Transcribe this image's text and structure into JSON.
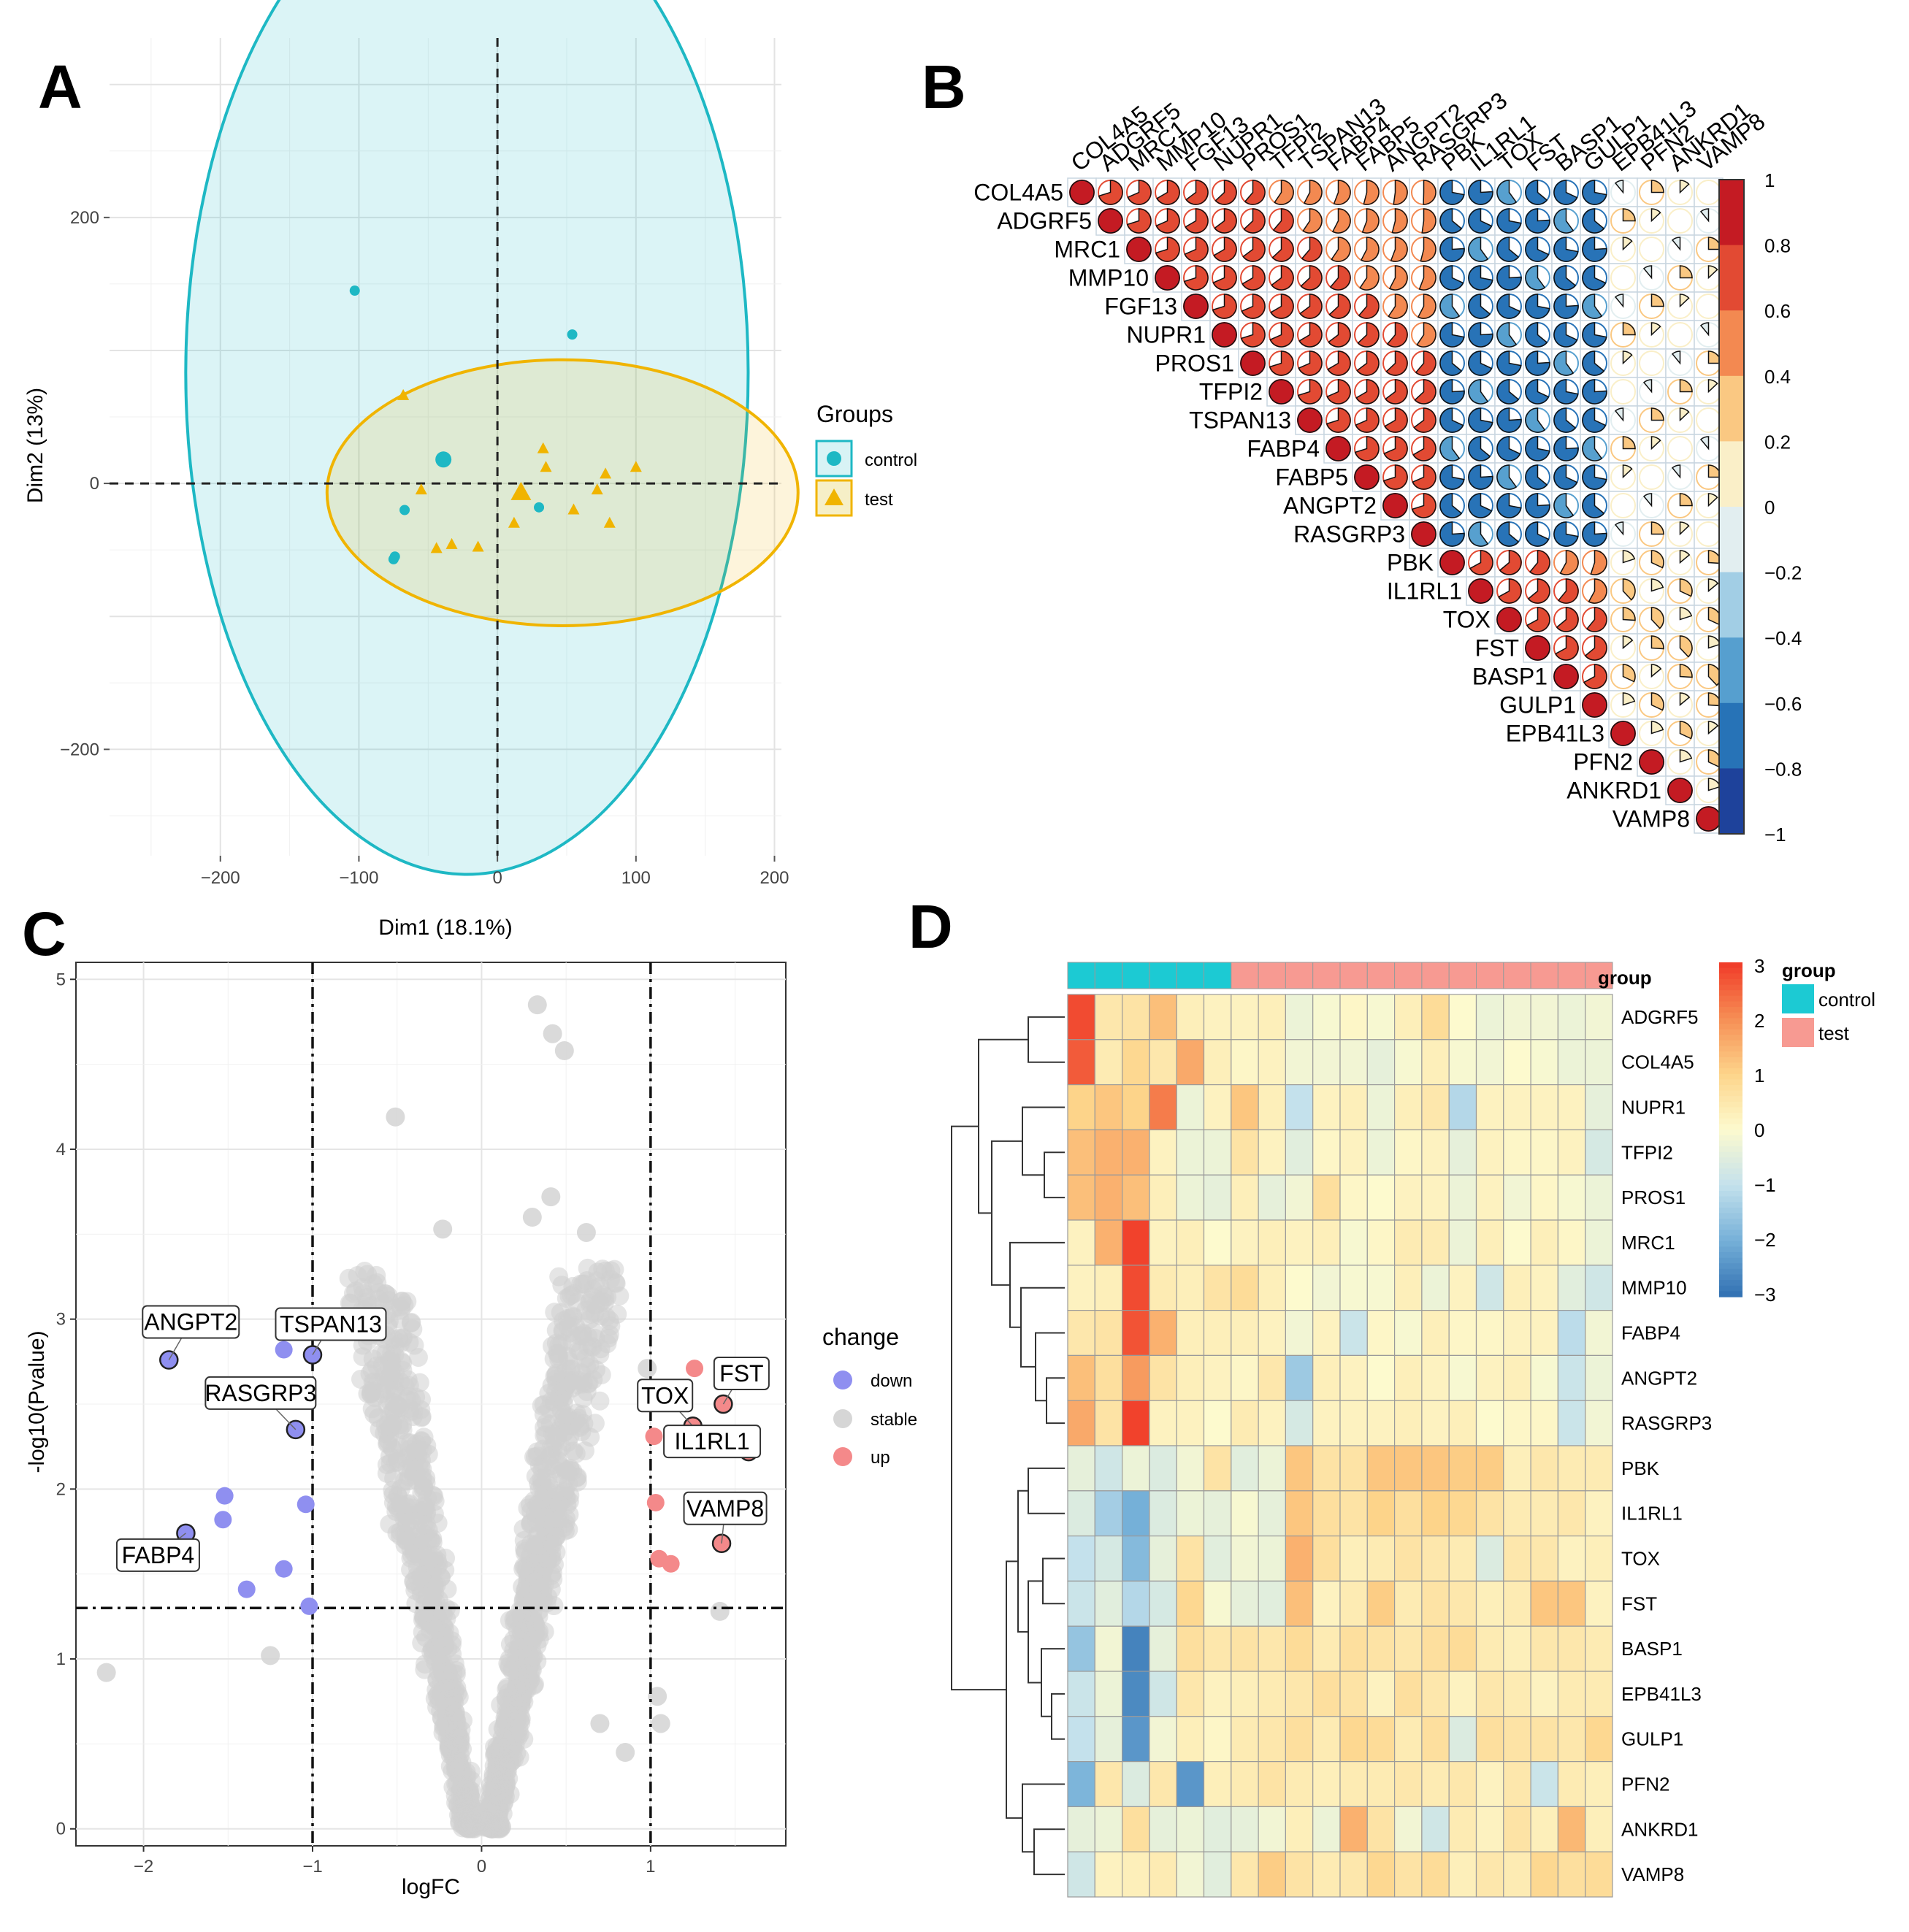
{
  "panels": {
    "a": "A",
    "b": "B",
    "c": "C",
    "d": "D"
  },
  "chart_data": [
    {
      "panel": "A",
      "type": "scatter",
      "title": "",
      "xlabel": "Dim1 (18.1%)",
      "ylabel": "Dim2 (13%)",
      "xlim": [
        -280,
        205
      ],
      "ylim": [
        -280,
        335
      ],
      "xticks": [
        -200,
        -100,
        0,
        100,
        200
      ],
      "yticks": [
        -200,
        0,
        200
      ],
      "grid": true,
      "legend_title": "Groups",
      "legend_position": "right",
      "colors": {
        "control": "#1eb8c4",
        "test": "#f0b400"
      },
      "series": [
        {
          "name": "control",
          "marker": "circle",
          "points": [
            [
              -103,
              145
            ],
            [
              54,
              112
            ],
            [
              -40,
              18
            ],
            [
              -67,
              -20
            ],
            [
              30,
              -18
            ],
            [
              -74,
              -55
            ],
            [
              -75,
              -57
            ]
          ],
          "centroid": [
            -39,
            18
          ],
          "ellipse": {
            "cx": -22,
            "cy": 83,
            "rx": 203,
            "ry": 377
          }
        },
        {
          "name": "test",
          "marker": "triangle",
          "points": [
            [
              -68,
              66
            ],
            [
              33,
              26
            ],
            [
              35,
              12
            ],
            [
              -55,
              -5
            ],
            [
              -33,
              -46
            ],
            [
              -44,
              -49
            ],
            [
              -14,
              -48
            ],
            [
              12,
              -30
            ],
            [
              55,
              -20
            ],
            [
              72,
              -5
            ],
            [
              78,
              7
            ],
            [
              100,
              12
            ],
            [
              81,
              -30
            ]
          ],
          "centroid": [
            17,
            -7
          ],
          "ellipse": {
            "cx": 47,
            "cy": -7,
            "rx": 170,
            "ry": 100
          }
        }
      ]
    },
    {
      "panel": "B",
      "type": "heatmap",
      "subtype": "correlation-pie-upper",
      "title": "",
      "genes": [
        "COL4A5",
        "ADGRF5",
        "MRC1",
        "MMP10",
        "FGF13",
        "NUPR1",
        "PROS1",
        "TFPI2",
        "TSPAN13",
        "FABP4",
        "FABP5",
        "ANGPT2",
        "RASGRP3",
        "PBK",
        "IL1RL1",
        "TOX",
        "FST",
        "BASP1",
        "GULP1",
        "EPB41L3",
        "PFN2",
        "ANKRD1",
        "VAMP8"
      ],
      "colorbar_ticks": [
        "1",
        "0.8",
        "0.6",
        "0.4",
        "0.2",
        "0",
        "−0.2",
        "−0.4",
        "−0.6",
        "−0.8",
        "−1"
      ],
      "clim": [
        -1,
        1
      ]
    },
    {
      "panel": "C",
      "type": "scatter",
      "subtype": "volcano",
      "title": "",
      "xlabel": "logFC",
      "ylabel": "-log10(Pvalue)",
      "xlim": [
        -2.4,
        1.8
      ],
      "ylim": [
        -0.1,
        5.1
      ],
      "xticks": [
        -2,
        -1,
        0,
        1
      ],
      "yticks": [
        0,
        1,
        2,
        3,
        4,
        5
      ],
      "thresholds": {
        "logfc": [
          -1,
          1
        ],
        "p": 1.3
      },
      "legend_title": "change",
      "legend_position": "right",
      "legend": [
        {
          "label": "down",
          "color": "#8f8ff0"
        },
        {
          "label": "stable",
          "color": "#d6d6d6"
        },
        {
          "label": "up",
          "color": "#f4898a"
        }
      ],
      "down": [
        [
          -1.85,
          2.76
        ],
        [
          -1.17,
          2.82
        ],
        [
          -1.0,
          2.79
        ],
        [
          -1.04,
          2.57
        ],
        [
          -1.1,
          2.35
        ],
        [
          -1.04,
          1.91
        ],
        [
          -1.52,
          1.96
        ],
        [
          -1.53,
          1.82
        ],
        [
          -1.75,
          1.74
        ],
        [
          -1.17,
          1.53
        ],
        [
          -1.39,
          1.41
        ],
        [
          -1.02,
          1.31
        ]
      ],
      "up": [
        [
          1.26,
          2.71
        ],
        [
          1.43,
          2.5
        ],
        [
          1.25,
          2.37
        ],
        [
          1.02,
          2.31
        ],
        [
          1.58,
          2.22
        ],
        [
          1.03,
          1.92
        ],
        [
          1.42,
          1.68
        ],
        [
          1.05,
          1.59
        ],
        [
          1.12,
          1.56
        ]
      ],
      "stable_extremes": [
        [
          0.33,
          4.85
        ],
        [
          0.42,
          4.68
        ],
        [
          0.49,
          4.58
        ],
        [
          -0.51,
          4.19
        ],
        [
          0.41,
          3.72
        ],
        [
          0.3,
          3.6
        ],
        [
          0.62,
          3.51
        ],
        [
          -0.23,
          3.53
        ],
        [
          0.98,
          2.71
        ],
        [
          -2.22,
          0.92
        ],
        [
          -1.25,
          1.02
        ],
        [
          1.41,
          1.28
        ],
        [
          1.04,
          0.78
        ],
        [
          1.06,
          0.62
        ],
        [
          0.85,
          0.45
        ],
        [
          0.7,
          0.62
        ]
      ],
      "labeled_genes": [
        {
          "gene": "ANGPT2",
          "x": -1.85,
          "y": 2.76
        },
        {
          "gene": "TSPAN13",
          "x": -1.0,
          "y": 2.79
        },
        {
          "gene": "RASGRP3",
          "x": -1.1,
          "y": 2.35
        },
        {
          "gene": "FABP4",
          "x": -1.75,
          "y": 1.74
        },
        {
          "gene": "FST",
          "x": 1.43,
          "y": 2.5
        },
        {
          "gene": "TOX",
          "x": 1.25,
          "y": 2.37
        },
        {
          "gene": "IL1RL1",
          "x": 1.58,
          "y": 2.22
        },
        {
          "gene": "VAMP8",
          "x": 1.42,
          "y": 1.68
        }
      ]
    },
    {
      "panel": "D",
      "type": "heatmap",
      "title": "",
      "rows": [
        "ADGRF5",
        "COL4A5",
        "NUPR1",
        "TFPI2",
        "PROS1",
        "MRC1",
        "MMP10",
        "FABP4",
        "ANGPT2",
        "RASGRP3",
        "PBK",
        "IL1RL1",
        "TOX",
        "FST",
        "BASP1",
        "EPB41L3",
        "GULP1",
        "PFN2",
        "ANKRD1",
        "VAMP8"
      ],
      "n_columns": 20,
      "group_annotation_label": "group",
      "column_groups": [
        "control",
        "control",
        "control",
        "control",
        "control",
        "control",
        "test",
        "test",
        "test",
        "test",
        "test",
        "test",
        "test",
        "test",
        "test",
        "test",
        "test",
        "test",
        "test",
        "test"
      ],
      "group_colors": {
        "control": "#1ccad3",
        "test": "#f79a92"
      },
      "legend_title": "group",
      "legend": [
        {
          "label": "control",
          "color": "#1ccad3"
        },
        {
          "label": "test",
          "color": "#f79a92"
        }
      ],
      "clim": [
        -3,
        3
      ],
      "colorbar_ticks": [
        "3",
        "2",
        "1",
        "0",
        "−1",
        "−2",
        "−3"
      ],
      "values": [
        [
          2.8,
          0.5,
          0.6,
          1.3,
          0.3,
          0.2,
          0.2,
          0.3,
          -0.3,
          -0.1,
          0.1,
          -0.1,
          0.3,
          0.8,
          0.0,
          -0.3,
          -0.2,
          -0.2,
          -0.3,
          -0.2
        ],
        [
          2.6,
          0.4,
          0.9,
          0.5,
          1.6,
          0.3,
          0.1,
          0.2,
          -0.2,
          -0.2,
          -0.2,
          -0.4,
          -0.1,
          0.3,
          -0.1,
          -0.2,
          0.0,
          -0.1,
          -0.3,
          -0.3
        ],
        [
          1.0,
          1.2,
          1.0,
          2.2,
          -0.3,
          0.2,
          1.2,
          0.3,
          -1.0,
          0.2,
          0.3,
          -0.3,
          0.3,
          0.5,
          -1.2,
          0.2,
          0.2,
          0.2,
          0.2,
          -0.4
        ],
        [
          1.3,
          1.5,
          1.5,
          0.2,
          -0.3,
          -0.3,
          0.6,
          0.2,
          -0.5,
          0.1,
          0.2,
          -0.3,
          0.1,
          0.2,
          -0.4,
          0.2,
          0.1,
          0.1,
          0.2,
          -0.7
        ],
        [
          1.3,
          1.5,
          1.3,
          0.3,
          -0.3,
          -0.4,
          0.3,
          -0.4,
          -0.2,
          0.7,
          0.1,
          0.0,
          0.2,
          0.2,
          -0.3,
          0.2,
          -0.2,
          0.1,
          -0.1,
          -0.3
        ],
        [
          0.2,
          1.5,
          2.9,
          0.2,
          0.3,
          0.0,
          0.2,
          0.3,
          0.2,
          0.3,
          -0.1,
          0.1,
          0.4,
          0.4,
          -0.3,
          0.3,
          0.0,
          0.3,
          0.1,
          -0.3
        ],
        [
          0.2,
          0.3,
          2.8,
          0.4,
          0.3,
          0.6,
          0.8,
          0.3,
          0.0,
          -0.2,
          -0.1,
          -0.1,
          0.3,
          -0.3,
          0.2,
          -0.8,
          0.3,
          0.2,
          -0.5,
          -0.8
        ],
        [
          0.5,
          0.6,
          2.7,
          1.5,
          0.3,
          0.3,
          0.3,
          0.2,
          -0.2,
          0.2,
          -0.9,
          0.1,
          -0.1,
          0.3,
          0.1,
          0.1,
          0.2,
          0.2,
          -1.1,
          -0.2
        ],
        [
          1.3,
          0.7,
          1.8,
          0.6,
          0.3,
          0.2,
          0.1,
          0.5,
          -1.5,
          0.3,
          0.2,
          0.0,
          0.3,
          0.2,
          -0.1,
          0.2,
          0.3,
          -0.1,
          -0.9,
          -0.3
        ],
        [
          1.6,
          0.6,
          2.9,
          0.2,
          0.2,
          0.0,
          0.4,
          0.2,
          -0.7,
          0.2,
          0.2,
          0.2,
          0.3,
          0.2,
          0.3,
          0.0,
          0.1,
          0.1,
          -0.9,
          -0.2
        ],
        [
          -0.4,
          -0.8,
          -0.3,
          -0.6,
          -0.2,
          0.6,
          -0.5,
          -0.3,
          1.2,
          0.6,
          0.6,
          1.2,
          1.2,
          1.2,
          1.1,
          1.1,
          0.3,
          0.5,
          0.4,
          0.4
        ],
        [
          -0.6,
          -1.4,
          -2.0,
          -0.6,
          -0.3,
          -0.4,
          -0.1,
          -0.4,
          1.2,
          0.7,
          0.6,
          1.0,
          0.7,
          1.0,
          0.9,
          0.6,
          0.4,
          0.4,
          0.5,
          0.2
        ],
        [
          -1.0,
          -0.7,
          -1.8,
          -0.4,
          0.6,
          -0.5,
          -0.2,
          -0.3,
          1.5,
          0.7,
          0.3,
          0.4,
          0.6,
          0.5,
          0.4,
          -0.6,
          0.5,
          0.5,
          0.2,
          0.3
        ],
        [
          -0.9,
          -0.5,
          -1.2,
          -0.7,
          0.9,
          -0.1,
          -0.4,
          -0.5,
          1.3,
          0.2,
          0.4,
          1.1,
          0.4,
          0.6,
          0.5,
          0.3,
          0.4,
          1.2,
          1.2,
          0.2
        ],
        [
          -1.6,
          -0.2,
          -2.7,
          -0.4,
          0.7,
          0.5,
          0.6,
          0.5,
          0.8,
          0.4,
          0.7,
          0.6,
          0.5,
          0.7,
          0.8,
          0.4,
          0.3,
          0.5,
          0.5,
          0.4
        ],
        [
          -0.9,
          -0.3,
          -2.6,
          -0.8,
          0.5,
          0.2,
          0.3,
          0.4,
          0.5,
          0.7,
          0.6,
          0.2,
          0.7,
          0.5,
          0.2,
          0.5,
          0.4,
          0.2,
          0.4,
          0.4
        ],
        [
          -1.0,
          -0.4,
          -2.4,
          -0.2,
          0.3,
          0.1,
          0.4,
          0.5,
          0.7,
          0.4,
          0.9,
          0.8,
          0.4,
          0.7,
          -0.6,
          0.7,
          0.6,
          0.6,
          0.5,
          0.9
        ],
        [
          -1.9,
          0.5,
          -0.6,
          0.5,
          -2.4,
          0.3,
          0.4,
          0.6,
          0.4,
          0.3,
          0.4,
          0.4,
          0.5,
          0.4,
          0.5,
          0.2,
          0.5,
          -0.9,
          0.4,
          0.3
        ],
        [
          -0.4,
          -0.3,
          0.7,
          -0.4,
          -0.3,
          -0.5,
          -0.4,
          -0.2,
          0.3,
          -0.3,
          1.5,
          0.6,
          -0.2,
          -0.8,
          0.4,
          0.2,
          0.6,
          0.3,
          1.4,
          0.3
        ],
        [
          -0.8,
          0.2,
          0.3,
          0.4,
          -0.2,
          -0.5,
          0.5,
          1.1,
          0.6,
          0.4,
          0.5,
          0.9,
          0.6,
          0.8,
          0.3,
          0.5,
          0.4,
          0.9,
          0.7,
          0.8
        ]
      ]
    }
  ]
}
